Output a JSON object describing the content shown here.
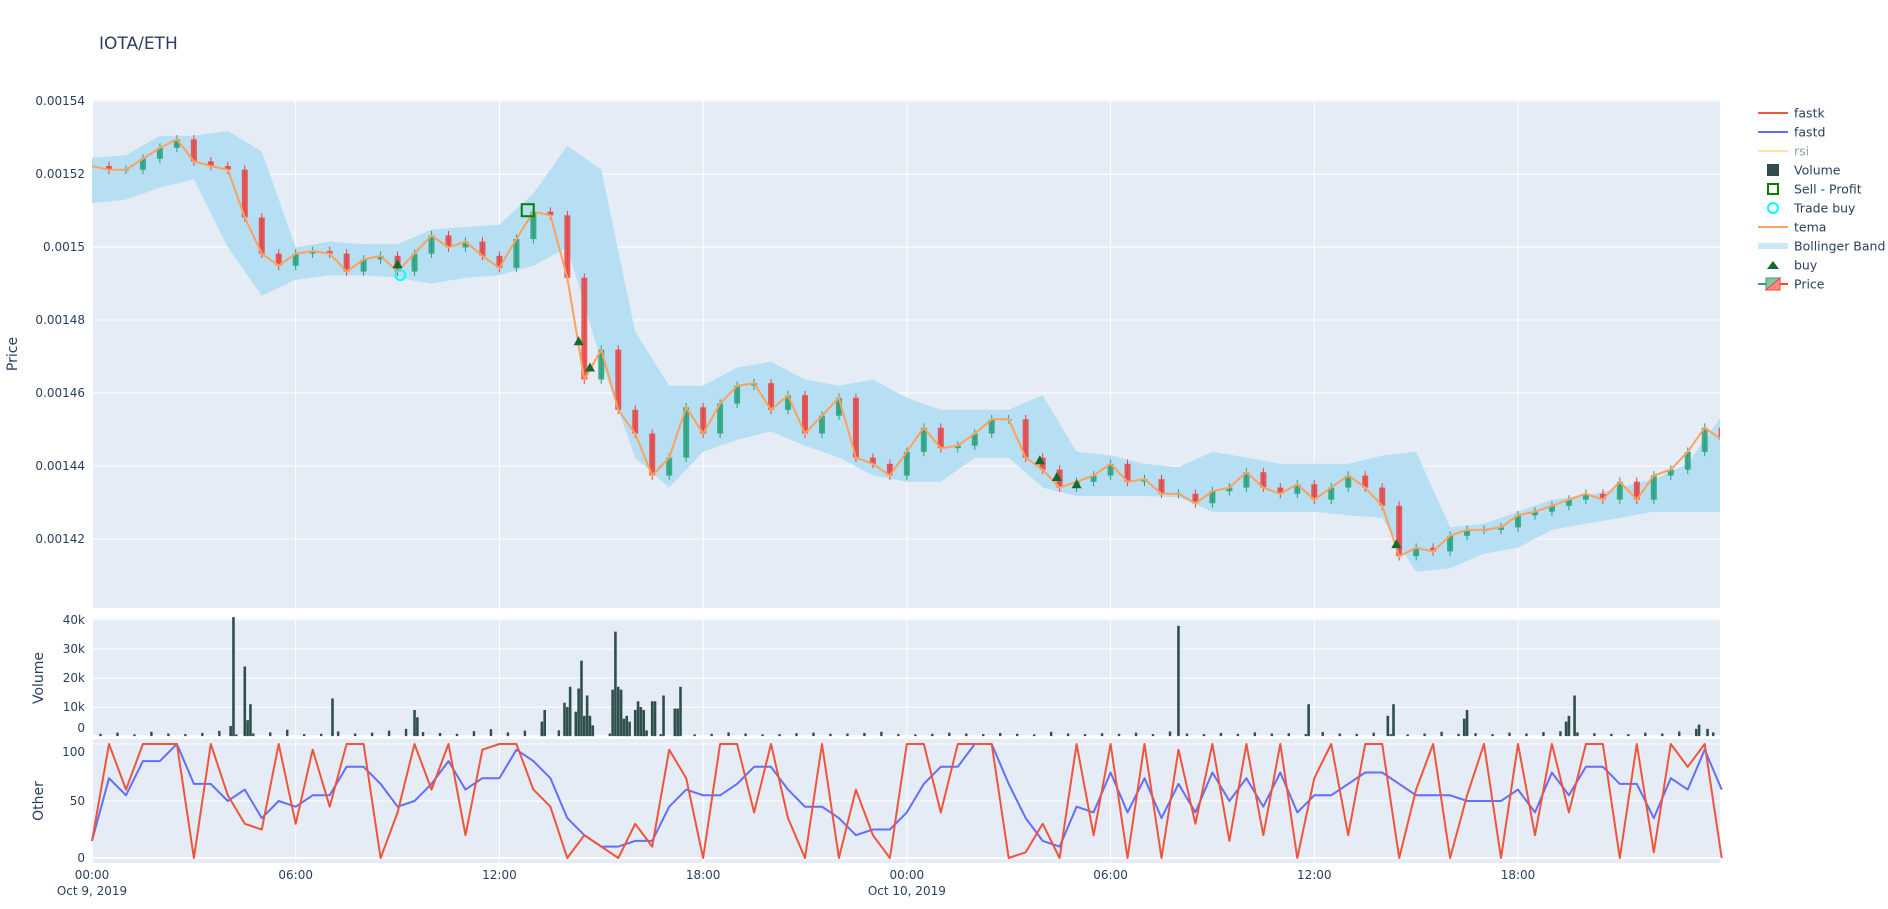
{
  "title": "IOTA/ETH",
  "legend": [
    {
      "label": "fastk",
      "symbol": "line",
      "color": "#ef553b"
    },
    {
      "label": "fastd",
      "symbol": "line",
      "color": "#636efa"
    },
    {
      "label": "rsi",
      "symbol": "line",
      "color": "#fecb52",
      "hidden": true
    },
    {
      "label": "Volume",
      "symbol": "square",
      "color": "#2f4f4f"
    },
    {
      "label": "Sell - Profit",
      "symbol": "square-open",
      "color": "#008000"
    },
    {
      "label": "Trade buy",
      "symbol": "circle-open",
      "color": "#00ffff"
    },
    {
      "label": "tema",
      "symbol": "line",
      "color": "#ffa15a"
    },
    {
      "label": "Bollinger Band",
      "symbol": "band",
      "color": "#b7dff4"
    },
    {
      "label": "buy",
      "symbol": "triangle-up",
      "color": "#136b32"
    },
    {
      "label": "Price",
      "symbol": "candlestick",
      "color": "#26a17b"
    }
  ],
  "x_axis": {
    "range": [
      "2019-10-09 00:00",
      "2019-10-10 23:57"
    ],
    "ticks": [
      {
        "t": "2019-10-09 00:00",
        "label": "00:00",
        "sub": "Oct 9, 2019"
      },
      {
        "t": "2019-10-09 06:00",
        "label": "06:00",
        "sub": ""
      },
      {
        "t": "2019-10-09 12:00",
        "label": "12:00",
        "sub": ""
      },
      {
        "t": "2019-10-09 18:00",
        "label": "18:00",
        "sub": ""
      },
      {
        "t": "2019-10-10 00:00",
        "label": "00:00",
        "sub": "Oct 10, 2019"
      },
      {
        "t": "2019-10-10 06:00",
        "label": "06:00",
        "sub": ""
      },
      {
        "t": "2019-10-10 12:00",
        "label": "12:00",
        "sub": ""
      },
      {
        "t": "2019-10-10 18:00",
        "label": "18:00",
        "sub": ""
      }
    ]
  },
  "chart_data": [
    {
      "type": "candlestick",
      "ylabel": "Price",
      "ylim": [
        0.0014011,
        0.0015403
      ],
      "yticks": [
        {
          "v": 0.00154,
          "label": "0.00154"
        },
        {
          "v": 0.00152,
          "label": "0.00152"
        },
        {
          "v": 0.0015,
          "label": "0.0015"
        },
        {
          "v": 0.00148,
          "label": "0.00148"
        },
        {
          "v": 0.00146,
          "label": "0.00146"
        },
        {
          "v": 0.00144,
          "label": "0.00144"
        },
        {
          "v": 0.00142,
          "label": "0.00142"
        }
      ],
      "grid": true,
      "increasing_color": "#26a17b",
      "decreasing_color": "#e8423f",
      "tema": {
        "name": "tema",
        "color": "#ffa15a",
        "x_start": "2019-10-09 00:00",
        "step_minutes": 30,
        "values": [
          0.0015222,
          0.0015212,
          0.0015212,
          0.0015242,
          0.0015272,
          0.0015295,
          0.0015235,
          0.0015222,
          0.0015212,
          0.0015081,
          0.0014982,
          0.0014949,
          0.0014982,
          0.0014989,
          0.0014982,
          0.0014933,
          0.0014966,
          0.0014976,
          0.0014933,
          0.0014982,
          0.0015032,
          0.0014999,
          0.0015015,
          0.0014976,
          0.0014943,
          0.0015022,
          0.0015097,
          0.0015087,
          0.0014916,
          0.0014637,
          0.0014719,
          0.0014554,
          0.0014489,
          0.0014374,
          0.0014423,
          0.0014561,
          0.0014489,
          0.0014571,
          0.001462,
          0.0014627,
          0.0014554,
          0.0014594,
          0.0014489,
          0.0014538,
          0.0014587,
          0.0014423,
          0.0014406,
          0.0014374,
          0.0014439,
          0.0014505,
          0.0014449,
          0.0014456,
          0.0014489,
          0.0014528,
          0.0014528,
          0.0014423,
          0.001439,
          0.0014341,
          0.0014357,
          0.0014374,
          0.0014406,
          0.0014357,
          0.0014364,
          0.0014324,
          0.0014324,
          0.0014298,
          0.0014331,
          0.0014341,
          0.0014383,
          0.0014341,
          0.0014324,
          0.001435,
          0.0014308,
          0.0014341,
          0.0014374,
          0.0014341,
          0.0014291,
          0.0014153,
          0.0014176,
          0.0014166,
          0.0014209,
          0.0014225,
          0.0014225,
          0.0014232,
          0.0014265,
          0.0014275,
          0.0014291,
          0.0014308,
          0.0014324,
          0.0014308,
          0.0014357,
          0.0014308,
          0.0014374,
          0.001439,
          0.0014439,
          0.0014505,
          0.0014472
        ]
      },
      "bollinger": {
        "name": "Bollinger Band",
        "color": "#b7dff4",
        "x_start": "2019-10-09 00:00",
        "step_minutes": 60,
        "upper": [
          0.0015245,
          0.0015252,
          0.0015305,
          0.0015305,
          0.0015318,
          0.0015262,
          0.0014999,
          0.0015015,
          0.0015008,
          0.0015008,
          0.0015048,
          0.0015055,
          0.0015061,
          0.0015147,
          0.0015278,
          0.0015212,
          0.0014768,
          0.001462,
          0.001462,
          0.001467,
          0.0014686,
          0.0014637,
          0.001462,
          0.0014637,
          0.0014587,
          0.0014554,
          0.0014554,
          0.0014554,
          0.0014594,
          0.0014439,
          0.0014429,
          0.0014406,
          0.0014397,
          0.0014439,
          0.0014423,
          0.0014406,
          0.0014406,
          0.0014406,
          0.0014429,
          0.0014439,
          0.0014232,
          0.0014242,
          0.0014275,
          0.0014308,
          0.0014318,
          0.0014341,
          0.0014364,
          0.0014406,
          0.0014538
        ],
        "lower": [
          0.001512,
          0.001513,
          0.0015163,
          0.0015186,
          0.0014999,
          0.0014867,
          0.001491,
          0.0014923,
          0.0014923,
          0.0014916,
          0.00149,
          0.0014916,
          0.0014923,
          0.0014949,
          0.0014999,
          0.0014686,
          0.0014423,
          0.0014341,
          0.0014439,
          0.0014472,
          0.0014495,
          0.0014456,
          0.0014423,
          0.0014374,
          0.0014357,
          0.0014357,
          0.0014423,
          0.0014423,
          0.0014341,
          0.0014318,
          0.0014318,
          0.0014318,
          0.0014314,
          0.0014275,
          0.0014275,
          0.0014275,
          0.0014275,
          0.0014265,
          0.0014258,
          0.001411,
          0.001412,
          0.001416,
          0.0014176,
          0.0014225,
          0.0014242,
          0.0014258,
          0.0014275,
          0.0014275,
          0.0014275
        ]
      },
      "buy_signals": [
        {
          "t": "2019-10-09 09:00",
          "price": 0.0014953
        },
        {
          "t": "2019-10-09 14:20",
          "price": 0.0014742
        },
        {
          "t": "2019-10-09 14:40",
          "price": 0.001467
        },
        {
          "t": "2019-10-10 03:55",
          "price": 0.0014416
        },
        {
          "t": "2019-10-10 04:25",
          "price": 0.001437
        },
        {
          "t": "2019-10-10 05:00",
          "price": 0.001435
        },
        {
          "t": "2019-10-10 14:25",
          "price": 0.0014186
        }
      ],
      "trade_buys": [
        {
          "t": "2019-10-09 09:05",
          "price": 0.0014923
        }
      ],
      "sell_profit": [
        {
          "t": "2019-10-09 12:50",
          "price": 0.0015101
        }
      ]
    },
    {
      "type": "bar",
      "ylabel": "Volume",
      "ylim": [
        -300,
        40350
      ],
      "yticks": [
        {
          "v": 0,
          "label": "0"
        },
        {
          "v": 10000,
          "label": "10k"
        },
        {
          "v": 20000,
          "label": "20k"
        },
        {
          "v": 30000,
          "label": "30k"
        },
        {
          "v": 40000,
          "label": "40k"
        }
      ],
      "color": "#2f4f4f",
      "baseline": {
        "x_start": "2019-10-09 00:15",
        "step_minutes": 30,
        "values": [
          800,
          1200,
          600,
          1500,
          900,
          700,
          1100,
          1800,
          600,
          900,
          1300,
          2200,
          700,
          800,
          1600,
          900,
          1200,
          1900,
          2500,
          1400,
          1100,
          800,
          1700,
          2400,
          1300,
          1900,
          2600,
          2000,
          1500,
          1200,
          900,
          1400,
          1000,
          700,
          1100,
          600,
          800,
          1300,
          900,
          600,
          700,
          1000,
          1200,
          800,
          900,
          1100,
          1500,
          700,
          600,
          800,
          1200,
          900,
          700,
          1100,
          800,
          600,
          1500,
          900,
          700,
          1000,
          800,
          1200,
          700,
          1600,
          900,
          700,
          1100,
          800,
          1300,
          900,
          1000,
          700,
          1400,
          900,
          800,
          1200,
          700,
          600,
          900,
          1500,
          800,
          1000,
          700,
          1200,
          900,
          1400,
          1700,
          1300,
          1000,
          800,
          700,
          1200,
          900,
          1600,
          2500,
          1300
        ]
      },
      "bars": [
        {
          "t": "2019-10-09 04:05",
          "v": 3500
        },
        {
          "t": "2019-10-09 04:10",
          "v": 41000
        },
        {
          "t": "2019-10-09 04:30",
          "v": 24000
        },
        {
          "t": "2019-10-09 04:35",
          "v": 5500
        },
        {
          "t": "2019-10-09 04:40",
          "v": 11000
        },
        {
          "t": "2019-10-09 07:05",
          "v": 13000
        },
        {
          "t": "2019-10-09 09:30",
          "v": 9000
        },
        {
          "t": "2019-10-09 09:35",
          "v": 6500
        },
        {
          "t": "2019-10-09 13:15",
          "v": 5000
        },
        {
          "t": "2019-10-09 13:20",
          "v": 9000
        },
        {
          "t": "2019-10-09 13:55",
          "v": 11500
        },
        {
          "t": "2019-10-09 14:00",
          "v": 10000
        },
        {
          "t": "2019-10-09 14:05",
          "v": 17000
        },
        {
          "t": "2019-10-09 14:15",
          "v": 8400
        },
        {
          "t": "2019-10-09 14:20",
          "v": 16400
        },
        {
          "t": "2019-10-09 14:25",
          "v": 26000
        },
        {
          "t": "2019-10-09 14:30",
          "v": 7000
        },
        {
          "t": "2019-10-09 14:35",
          "v": 14000
        },
        {
          "t": "2019-10-09 14:40",
          "v": 7000
        },
        {
          "t": "2019-10-09 14:45",
          "v": 3700
        },
        {
          "t": "2019-10-09 15:20",
          "v": 16000
        },
        {
          "t": "2019-10-09 15:25",
          "v": 36000
        },
        {
          "t": "2019-10-09 15:30",
          "v": 17000
        },
        {
          "t": "2019-10-09 15:35",
          "v": 16000
        },
        {
          "t": "2019-10-09 15:40",
          "v": 6000
        },
        {
          "t": "2019-10-09 15:45",
          "v": 7000
        },
        {
          "t": "2019-10-09 15:50",
          "v": 5000
        },
        {
          "t": "2019-10-09 16:00",
          "v": 9000
        },
        {
          "t": "2019-10-09 16:05",
          "v": 12000
        },
        {
          "t": "2019-10-09 16:10",
          "v": 10000
        },
        {
          "t": "2019-10-09 16:15",
          "v": 9000
        },
        {
          "t": "2019-10-09 16:20",
          "v": 2000
        },
        {
          "t": "2019-10-09 16:30",
          "v": 12000
        },
        {
          "t": "2019-10-09 16:35",
          "v": 12000
        },
        {
          "t": "2019-10-09 16:50",
          "v": 14000
        },
        {
          "t": "2019-10-09 17:10",
          "v": 9500
        },
        {
          "t": "2019-10-09 17:15",
          "v": 9500
        },
        {
          "t": "2019-10-09 17:20",
          "v": 17000
        },
        {
          "t": "2019-10-10 08:00",
          "v": 38000
        },
        {
          "t": "2019-10-10 11:50",
          "v": 11000
        },
        {
          "t": "2019-10-10 14:10",
          "v": 7000
        },
        {
          "t": "2019-10-10 14:20",
          "v": 11000
        },
        {
          "t": "2019-10-10 16:25",
          "v": 6000
        },
        {
          "t": "2019-10-10 16:30",
          "v": 9000
        },
        {
          "t": "2019-10-10 19:25",
          "v": 5000
        },
        {
          "t": "2019-10-10 19:30",
          "v": 7000
        },
        {
          "t": "2019-10-10 19:40",
          "v": 14000
        },
        {
          "t": "2019-10-10 23:20",
          "v": 4000
        },
        {
          "t": "2019-10-10 23:35",
          "v": 2500
        }
      ]
    },
    {
      "type": "line",
      "ylabel": "Other",
      "ylim": [
        -4.4,
        104.4
      ],
      "yticks": [
        {
          "v": 0,
          "label": "0"
        },
        {
          "v": 50,
          "label": "50"
        },
        {
          "v": 100,
          "label": "100"
        }
      ],
      "x_start": "2019-10-09 00:00",
      "step_minutes": 30,
      "series": [
        {
          "name": "fastk",
          "color": "#ef553b",
          "values": [
            15,
            100,
            60,
            100,
            100,
            100,
            0,
            100,
            55,
            30,
            25,
            100,
            30,
            95,
            45,
            100,
            100,
            0,
            40,
            100,
            60,
            100,
            20,
            95,
            100,
            100,
            60,
            45,
            0,
            20,
            10,
            0,
            30,
            10,
            95,
            70,
            0,
            100,
            100,
            40,
            100,
            35,
            0,
            100,
            0,
            60,
            20,
            0,
            100,
            100,
            40,
            100,
            100,
            100,
            0,
            5,
            30,
            0,
            100,
            20,
            100,
            0,
            100,
            0,
            95,
            30,
            100,
            15,
            100,
            20,
            100,
            0,
            70,
            100,
            20,
            100,
            100,
            0,
            60,
            100,
            0,
            55,
            100,
            0,
            100,
            20,
            100,
            40,
            100,
            100,
            0,
            100,
            5,
            100,
            80,
            100,
            0
          ]
        },
        {
          "name": "fastd",
          "color": "#636efa",
          "values": [
            15,
            70,
            55,
            85,
            85,
            100,
            65,
            65,
            50,
            60,
            35,
            50,
            45,
            55,
            55,
            80,
            80,
            65,
            45,
            50,
            65,
            85,
            60,
            70,
            70,
            95,
            85,
            70,
            35,
            20,
            10,
            10,
            15,
            15,
            45,
            60,
            55,
            55,
            65,
            80,
            80,
            60,
            45,
            45,
            35,
            20,
            25,
            25,
            40,
            65,
            80,
            80,
            100,
            100,
            65,
            35,
            15,
            10,
            45,
            40,
            75,
            40,
            70,
            35,
            65,
            40,
            75,
            50,
            70,
            45,
            75,
            40,
            55,
            55,
            65,
            75,
            75,
            65,
            55,
            55,
            55,
            50,
            50,
            50,
            60,
            40,
            75,
            55,
            80,
            80,
            65,
            65,
            35,
            70,
            60,
            95,
            60
          ]
        }
      ]
    }
  ]
}
